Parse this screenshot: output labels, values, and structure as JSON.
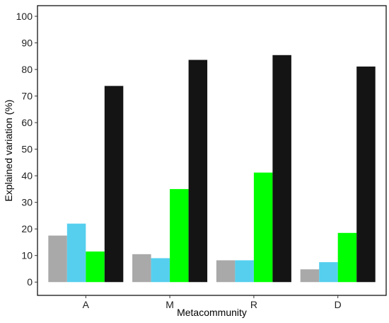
{
  "chart_data": {
    "type": "bar",
    "title": "",
    "xlabel": "Metacommunity",
    "ylabel": "Explained variation (%)",
    "categories": [
      "A",
      "M",
      "R",
      "D"
    ],
    "ylim": [
      -5,
      104
    ],
    "yticks": [
      0,
      10,
      20,
      30,
      40,
      50,
      60,
      70,
      80,
      90,
      100
    ],
    "grid": false,
    "legend": "none",
    "series": [
      {
        "color": "#a9a9a9",
        "values": [
          17.5,
          10.5,
          8.2,
          4.8
        ]
      },
      {
        "color": "#56cfee",
        "values": [
          22,
          9,
          8.2,
          7.5
        ]
      },
      {
        "color": "#00ff00",
        "values": [
          11.5,
          35,
          41.2,
          18.5
        ]
      },
      {
        "color": "#141414",
        "values": [
          73.8,
          83.6,
          85.4,
          81.1
        ]
      }
    ]
  }
}
